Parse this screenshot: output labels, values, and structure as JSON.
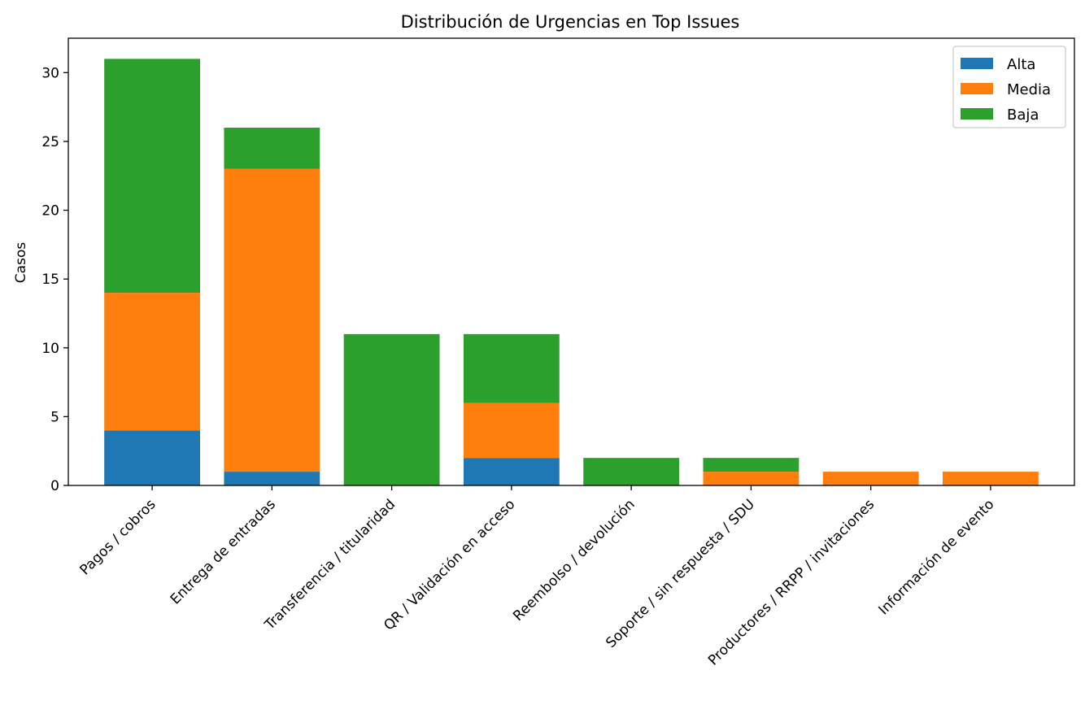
{
  "chart_data": {
    "type": "bar",
    "stacked": true,
    "title": "Distribución de Urgencias en Top Issues",
    "xlabel": "",
    "ylabel": "Casos",
    "ylim": [
      0,
      32.5
    ],
    "yticks": [
      0,
      5,
      10,
      15,
      20,
      25,
      30
    ],
    "categories": [
      "Pagos / cobros",
      "Entrega de entradas",
      "Transferencia / titularidad",
      "QR / Validación en acceso",
      "Reembolso / devolución",
      "Soporte / sin respuesta / SDU",
      "Productores / RRPP / invitaciones",
      "Información de evento"
    ],
    "series": [
      {
        "name": "Alta",
        "color": "#1f77b4",
        "values": [
          4,
          1,
          0,
          2,
          0,
          0,
          0,
          0
        ]
      },
      {
        "name": "Media",
        "color": "#ff7f0e",
        "values": [
          10,
          22,
          0,
          4,
          0,
          1,
          1,
          1
        ]
      },
      {
        "name": "Baja",
        "color": "#2ca02c",
        "values": [
          17,
          3,
          11,
          5,
          2,
          1,
          0,
          0
        ]
      }
    ],
    "legend_position": "top-right",
    "grid": false
  }
}
